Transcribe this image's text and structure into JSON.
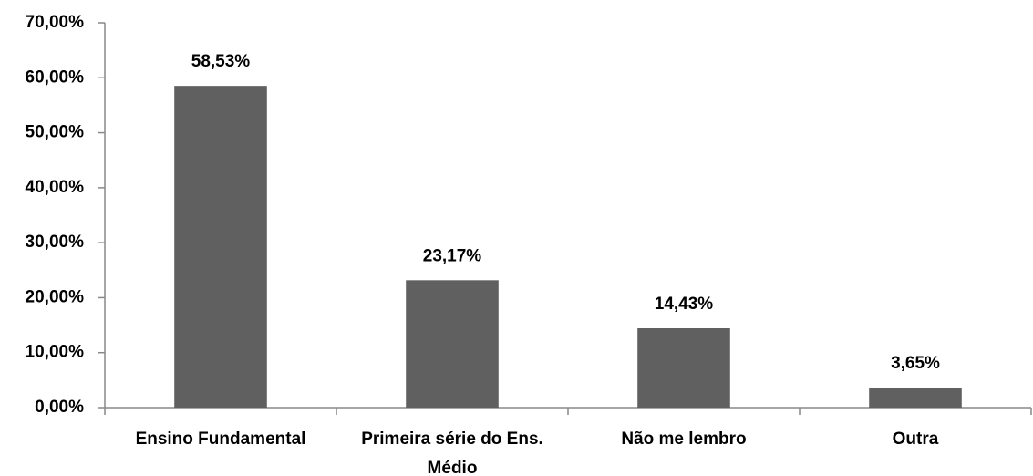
{
  "chart_data": {
    "type": "bar",
    "categories": [
      "Ensino Fundamental",
      "Primeira série do Ens. Médio",
      "Não me lembro",
      "Outra"
    ],
    "values": [
      58.53,
      23.17,
      14.43,
      3.65
    ],
    "value_labels": [
      "58,53%",
      "23,17%",
      "14,43%",
      "3,65%"
    ],
    "color": "#606060",
    "ylim": [
      0,
      70
    ],
    "yticks": [
      {
        "value": 0,
        "label": "0,00%"
      },
      {
        "value": 10,
        "label": "10,00%"
      },
      {
        "value": 20,
        "label": "20,00%"
      },
      {
        "value": 30,
        "label": "30,00%"
      },
      {
        "value": 40,
        "label": "40,00%"
      },
      {
        "value": 50,
        "label": "50,00%"
      },
      {
        "value": 60,
        "label": "60,00%"
      },
      {
        "value": 70,
        "label": "70,00%"
      }
    ],
    "grid": false
  }
}
